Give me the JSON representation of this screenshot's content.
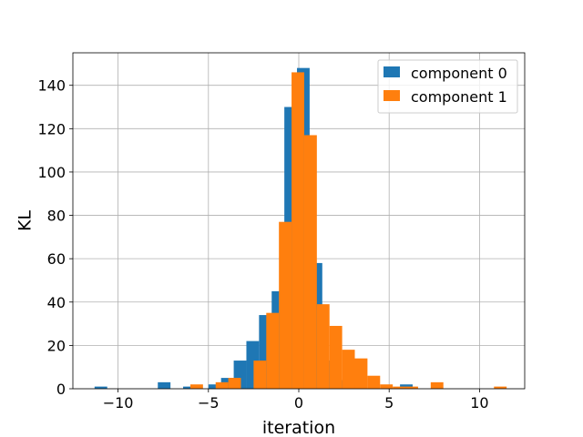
{
  "chart_data": {
    "type": "bar",
    "xlabel": "iteration",
    "ylabel": "KL",
    "xlim": [
      -12.5,
      12.5
    ],
    "ylim": [
      0,
      155
    ],
    "grid": true,
    "legend_position": "top-right",
    "x_ticks": [
      -10,
      -5,
      0,
      5,
      10
    ],
    "x_tick_labels": [
      "−10",
      "−5",
      "0",
      "5",
      "10"
    ],
    "y_ticks": [
      0,
      20,
      40,
      60,
      80,
      100,
      120,
      140
    ],
    "y_tick_labels": [
      "0",
      "20",
      "40",
      "60",
      "80",
      "100",
      "120",
      "140"
    ],
    "series": [
      {
        "name": "component 0",
        "color": "#1f77b4",
        "bins": [
          {
            "x0": -11.3,
            "x1": -10.6,
            "value": 1
          },
          {
            "x0": -7.8,
            "x1": -7.1,
            "value": 3
          },
          {
            "x0": -6.4,
            "x1": -5.7,
            "value": 1
          },
          {
            "x0": -5.0,
            "x1": -4.3,
            "value": 2
          },
          {
            "x0": -4.3,
            "x1": -3.6,
            "value": 5
          },
          {
            "x0": -3.6,
            "x1": -2.9,
            "value": 13
          },
          {
            "x0": -2.9,
            "x1": -2.2,
            "value": 22
          },
          {
            "x0": -2.2,
            "x1": -1.5,
            "value": 34
          },
          {
            "x0": -1.5,
            "x1": -0.8,
            "value": 45
          },
          {
            "x0": -0.8,
            "x1": -0.1,
            "value": 130
          },
          {
            "x0": -0.1,
            "x1": 0.6,
            "value": 148
          },
          {
            "x0": 0.6,
            "x1": 1.3,
            "value": 58
          },
          {
            "x0": 1.3,
            "x1": 2.0,
            "value": 13
          },
          {
            "x0": 2.0,
            "x1": 2.7,
            "value": 4
          },
          {
            "x0": 2.7,
            "x1": 3.4,
            "value": 2
          },
          {
            "x0": 5.6,
            "x1": 6.3,
            "value": 2
          }
        ]
      },
      {
        "name": "component 1",
        "color": "#ff7f0e",
        "bins": [
          {
            "x0": -6.0,
            "x1": -5.3,
            "value": 2
          },
          {
            "x0": -4.6,
            "x1": -3.9,
            "value": 3
          },
          {
            "x0": -3.9,
            "x1": -3.2,
            "value": 5
          },
          {
            "x0": -2.5,
            "x1": -1.8,
            "value": 13
          },
          {
            "x0": -1.8,
            "x1": -1.1,
            "value": 35
          },
          {
            "x0": -1.1,
            "x1": -0.4,
            "value": 77
          },
          {
            "x0": -0.4,
            "x1": 0.3,
            "value": 146
          },
          {
            "x0": 0.3,
            "x1": 1.0,
            "value": 117
          },
          {
            "x0": 1.0,
            "x1": 1.7,
            "value": 39
          },
          {
            "x0": 1.7,
            "x1": 2.4,
            "value": 29
          },
          {
            "x0": 2.4,
            "x1": 3.1,
            "value": 18
          },
          {
            "x0": 3.1,
            "x1": 3.8,
            "value": 14
          },
          {
            "x0": 3.8,
            "x1": 4.5,
            "value": 6
          },
          {
            "x0": 4.5,
            "x1": 5.2,
            "value": 2
          },
          {
            "x0": 5.2,
            "x1": 5.9,
            "value": 1
          },
          {
            "x0": 5.9,
            "x1": 6.6,
            "value": 1
          },
          {
            "x0": 7.3,
            "x1": 8.0,
            "value": 3
          },
          {
            "x0": 10.8,
            "x1": 11.5,
            "value": 1
          }
        ]
      }
    ]
  }
}
